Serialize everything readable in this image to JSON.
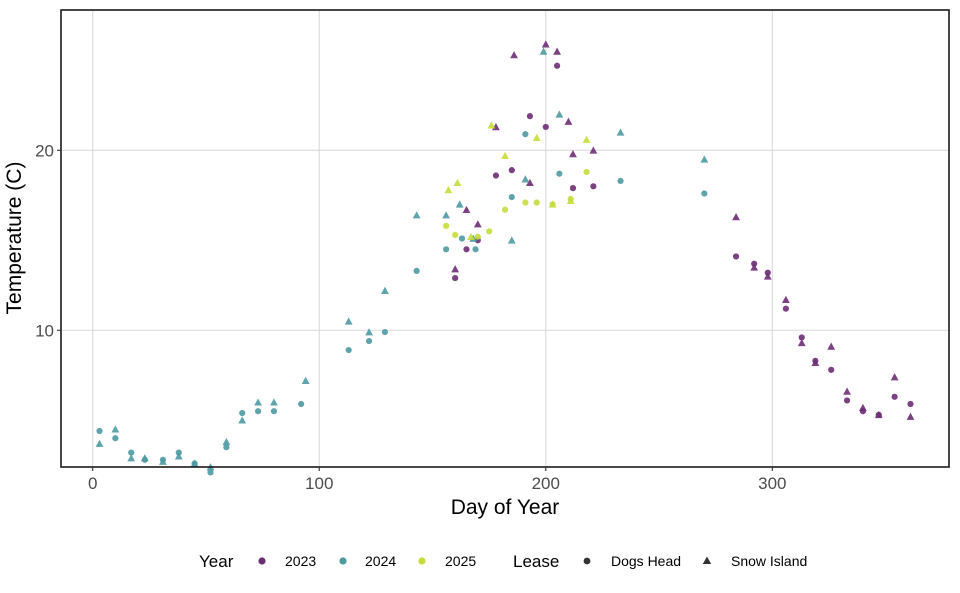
{
  "chart_data": {
    "type": "scatter",
    "title": "",
    "xlabel": "Day of Year",
    "ylabel": "Temperature (C)",
    "xlim": [
      -14,
      378
    ],
    "ylim": [
      2.4,
      27.8
    ],
    "x_ticks": [
      0,
      100,
      200,
      300
    ],
    "y_ticks": [
      10,
      20
    ],
    "grid": true,
    "legend_position": "bottom",
    "legend": {
      "color_title": "Year",
      "shape_title": "Lease",
      "colors": [
        {
          "label": "2023",
          "color": "#6b2e73"
        },
        {
          "label": "2024",
          "color": "#4e9aa1"
        },
        {
          "label": "2025",
          "color": "#c7dc3c"
        }
      ],
      "shapes": [
        {
          "label": "Dogs Head",
          "shape": "circle"
        },
        {
          "label": "Snow Island",
          "shape": "triangle"
        }
      ]
    },
    "series": [
      {
        "year": "2023",
        "lease": "Dogs Head",
        "x": [
          160,
          165,
          170,
          178,
          185,
          193,
          200,
          205,
          212,
          221,
          284,
          292,
          298,
          306,
          313,
          319,
          326,
          333,
          340,
          347,
          354,
          361
        ],
        "y": [
          12.9,
          14.5,
          15.0,
          18.6,
          18.9,
          21.9,
          21.3,
          24.7,
          17.9,
          18.0,
          14.1,
          13.7,
          13.2,
          11.2,
          9.6,
          8.3,
          7.8,
          6.1,
          5.5,
          5.3,
          6.3,
          5.9
        ]
      },
      {
        "year": "2023",
        "lease": "Snow Island",
        "x": [
          160,
          165,
          170,
          178,
          186,
          193,
          200,
          205,
          210,
          212,
          221,
          284,
          292,
          298,
          306,
          313,
          319,
          326,
          333,
          340,
          347,
          354,
          361
        ],
        "y": [
          13.4,
          16.7,
          15.9,
          21.3,
          25.3,
          18.2,
          25.9,
          25.5,
          21.6,
          19.8,
          20.0,
          16.3,
          13.5,
          13.0,
          11.7,
          9.3,
          8.2,
          9.1,
          6.6,
          5.7,
          5.3,
          7.4,
          5.2
        ]
      },
      {
        "year": "2024",
        "lease": "Dogs Head",
        "x": [
          3,
          10,
          17,
          23,
          31,
          38,
          45,
          52,
          59,
          66,
          73,
          80,
          92,
          113,
          122,
          129,
          143,
          156,
          163,
          169,
          185,
          191,
          206,
          233,
          270
        ],
        "y": [
          4.4,
          4.0,
          3.2,
          2.8,
          2.8,
          3.2,
          2.6,
          2.1,
          3.5,
          5.4,
          5.5,
          5.5,
          5.9,
          8.9,
          9.4,
          9.9,
          13.3,
          14.5,
          15.1,
          14.5,
          17.4,
          20.9,
          18.7,
          18.3,
          17.6
        ]
      },
      {
        "year": "2024",
        "lease": "Snow Island",
        "x": [
          3,
          10,
          17,
          23,
          31,
          38,
          45,
          52,
          59,
          66,
          73,
          80,
          94,
          113,
          122,
          129,
          143,
          156,
          162,
          168,
          185,
          191,
          199,
          206,
          233,
          270
        ],
        "y": [
          3.7,
          4.5,
          2.9,
          2.9,
          2.7,
          3.0,
          2.6,
          2.4,
          3.8,
          5.0,
          6.0,
          6.0,
          7.2,
          10.5,
          9.9,
          12.2,
          16.4,
          16.4,
          17.0,
          15.1,
          15.0,
          18.4,
          25.5,
          22.0,
          21.0,
          19.5
        ]
      },
      {
        "year": "2025",
        "lease": "Dogs Head",
        "x": [
          156,
          160,
          170,
          175,
          182,
          191,
          196,
          203,
          211,
          218
        ],
        "y": [
          15.8,
          15.3,
          15.2,
          15.5,
          16.7,
          17.1,
          17.1,
          17.0,
          17.3,
          18.8
        ]
      },
      {
        "year": "2025",
        "lease": "Snow Island",
        "x": [
          157,
          161,
          167,
          176,
          182,
          196,
          203,
          211,
          218
        ],
        "y": [
          17.8,
          18.2,
          15.2,
          21.4,
          19.7,
          20.7,
          17.0,
          17.2,
          20.6
        ]
      }
    ]
  }
}
